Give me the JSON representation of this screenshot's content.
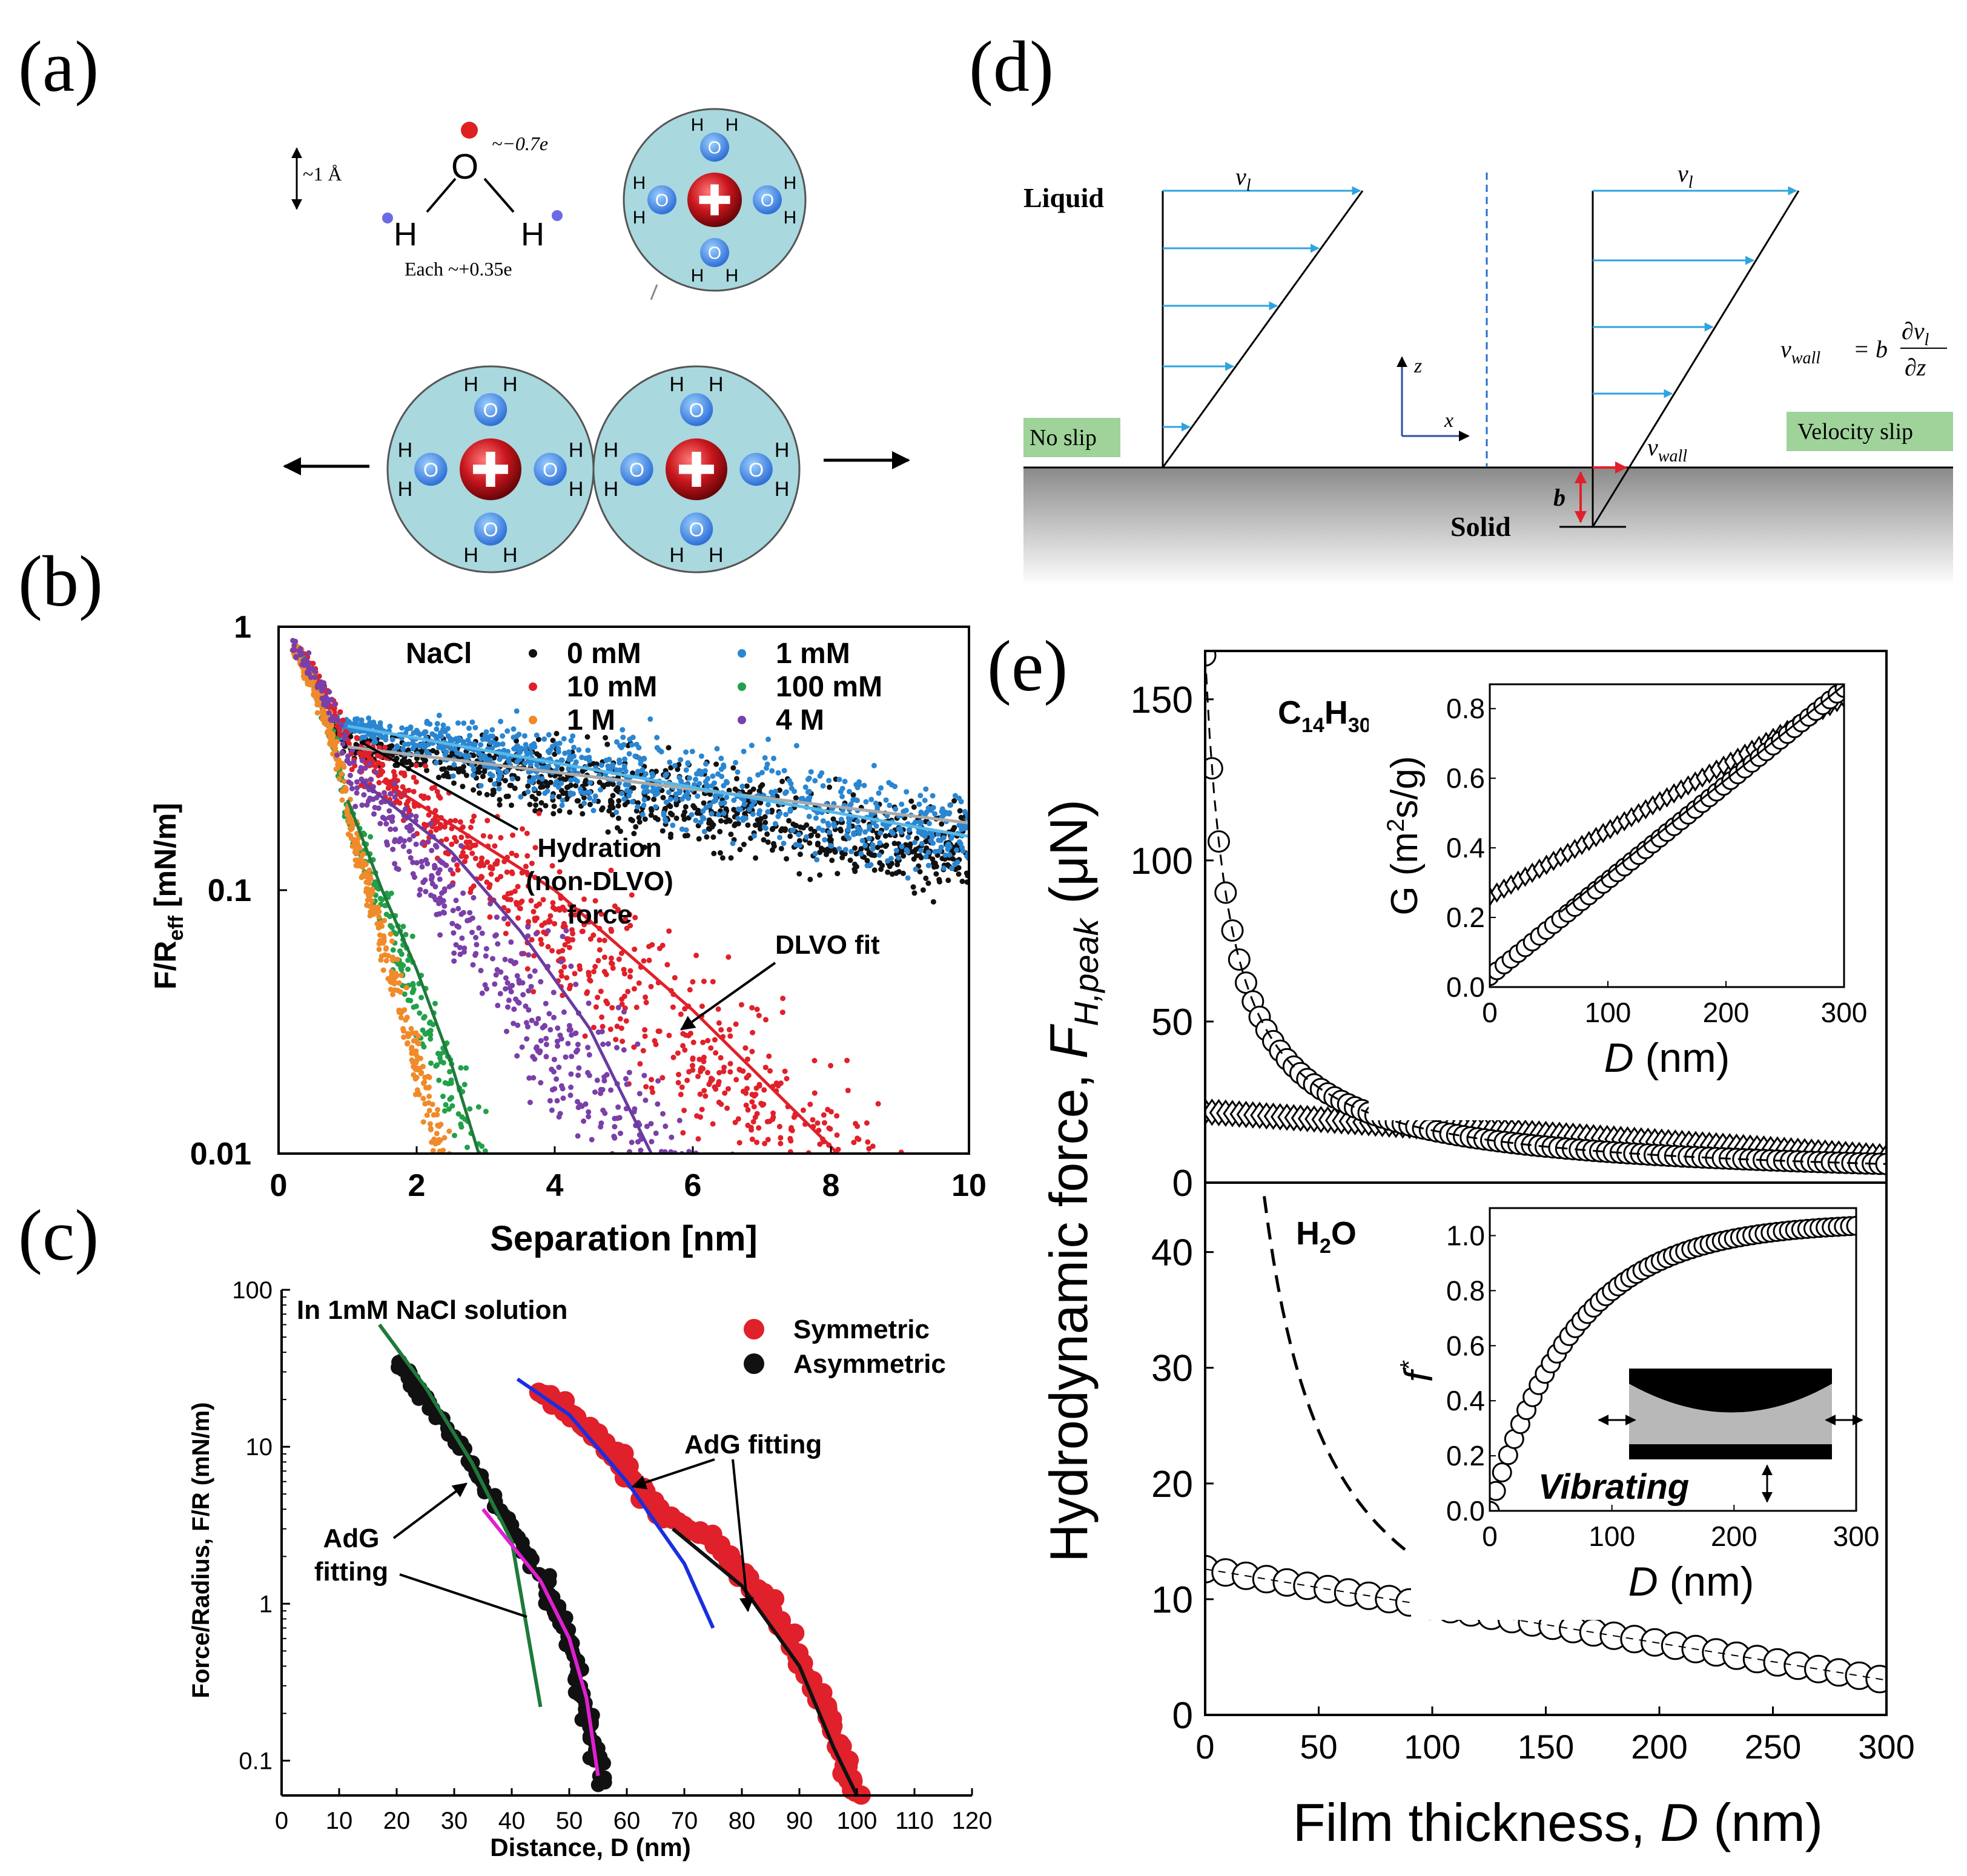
{
  "panels": {
    "a": {
      "letter": "(a)",
      "scale_label": "~1 Å",
      "o_charge": "~−0.7e",
      "h_charge": "Each ~+0.35e",
      "o_label": "O",
      "h_label": "H",
      "ion_h": "H",
      "ion_o": "O"
    },
    "b": {
      "letter": "(b)"
    },
    "c": {
      "letter": "(c)"
    },
    "d": {
      "letter": "(d)",
      "liquid": "Liquid",
      "solid": "Solid",
      "no_slip": "No slip",
      "velocity_slip": "Velocity slip",
      "v_l": "v",
      "v_l_sub": "l",
      "v_wall": "v",
      "v_wall_sub": "wall",
      "equation_lhs": "v",
      "equation_lhs_sub": "wall",
      "equation_eq": "= b",
      "equation_num": "∂v",
      "equation_num_sub": "l",
      "equation_den": "∂z",
      "b_label": "b",
      "z_axis": "z",
      "x_axis": "x"
    },
    "e": {
      "letter": "(e)"
    }
  },
  "colors": {
    "water_cyan": "#a9d8de",
    "ion_red": "#c8161d",
    "oxygen_blue": "#2f8fd6",
    "arrow_blue": "#2fa3e0",
    "label_green": "#9fd39a",
    "s_black": "#111111",
    "s_blue": "#2a86d1",
    "s_red": "#e0202a",
    "s_green": "#22a04a",
    "s_orange": "#f08a2a",
    "s_purple": "#7a3fa8",
    "fit_green": "#1f7a3a",
    "fit_purple": "#6a3aa0",
    "fit_magenta": "#e020d0",
    "fit_blue": "#1a2ee0",
    "fit_lightblue": "#58b8e8"
  },
  "chart_data": [
    {
      "id": "b",
      "type": "scatter",
      "title": "",
      "xlabel": "Separation [nm]",
      "ylabel": "F/R",
      "ylabel_sub": "eff",
      "ylabel_unit": " [mN/m]",
      "xlim": [
        0,
        10
      ],
      "ylim": [
        0.01,
        1
      ],
      "yscale": "log",
      "xticks": [
        0,
        2,
        4,
        6,
        8,
        10
      ],
      "xtick_labels": [
        "0",
        "2",
        "4",
        "6",
        "8",
        "10"
      ],
      "yticks": [
        1,
        0.1,
        0.01
      ],
      "ytick_labels": [
        "1",
        "0.1",
        "0.01"
      ],
      "legend_title": "NaCl",
      "series": [
        {
          "name": "0 mM",
          "color": "#111111",
          "model": {
            "A": 0.36,
            "k": 0.105,
            "x0": 0.9
          },
          "xrange": [
            0.8,
            10
          ],
          "scatter": 0.25
        },
        {
          "name": "1 mM",
          "color": "#2a86d1",
          "model": {
            "A": 0.42,
            "k": 0.105,
            "x0": 0.9
          },
          "xrange": [
            0.8,
            10
          ],
          "scatter": 0.25
        },
        {
          "name": "10 mM",
          "color": "#e0202a",
          "model": {
            "A": 0.35,
            "k": 0.52,
            "x0": 1.0
          },
          "xrange": [
            0.3,
            10
          ],
          "scatter": 0.5
        },
        {
          "name": "100 mM",
          "color": "#22a04a",
          "model": {
            "A": 0.2,
            "k": 1.6,
            "x0": 1.0
          },
          "xrange": [
            0.2,
            4.5
          ],
          "scatter": 0.55
        },
        {
          "name": "1 M",
          "color": "#f08a2a",
          "model": {
            "A": 0.2,
            "k": 2.2,
            "x0": 1.0
          },
          "xrange": [
            0.2,
            2.5
          ],
          "scatter": 0.5
        },
        {
          "name": "4 M",
          "color": "#7a3fa8",
          "model": {
            "A": 0.3,
            "k": 0.8,
            "x0": 1.0
          },
          "xrange": [
            0.2,
            10
          ],
          "scatter": 0.6
        }
      ],
      "fits": [
        {
          "name": "0 mM fit",
          "color": "#aaaaaa",
          "points": [
            [
              1.0,
              0.35
            ],
            [
              10,
              0.18
            ]
          ]
        },
        {
          "name": "1 mM fit",
          "color": "#58b8e8",
          "points": [
            [
              1.0,
              0.42
            ],
            [
              10,
              0.16
            ]
          ]
        },
        {
          "name": "10 mM fit",
          "color": "#e0202a",
          "points": [
            [
              1.5,
              0.26
            ],
            [
              4,
              0.1
            ],
            [
              6,
              0.035
            ],
            [
              8.1,
              0.01
            ]
          ]
        },
        {
          "name": "100 mM fit",
          "color": "#1f7a3a",
          "points": [
            [
              1.0,
              0.22
            ],
            [
              1.5,
              0.1
            ],
            [
              2,
              0.05
            ],
            [
              2.5,
              0.022
            ],
            [
              2.9,
              0.01
            ]
          ]
        },
        {
          "name": "4 M fit",
          "color": "#6a3aa0",
          "points": [
            [
              1.2,
              0.26
            ],
            [
              2.5,
              0.14
            ],
            [
              3.5,
              0.07
            ],
            [
              4.5,
              0.03
            ],
            [
              5.4,
              0.01
            ]
          ]
        }
      ],
      "annotations": [
        {
          "text_lines": [
            "Hydration",
            "(non-DLVO)",
            "force"
          ]
        },
        {
          "text_lines": [
            "DLVO fit"
          ]
        }
      ]
    },
    {
      "id": "c",
      "type": "scatter",
      "title": "In 1mM NaCl solution",
      "xlabel": "Distance, D (nm)",
      "ylabel": "Force/Radius, F/R (mN/m)",
      "xlim": [
        0,
        120
      ],
      "ylim": [
        0.06,
        100
      ],
      "yscale": "log",
      "xticks": [
        0,
        10,
        20,
        30,
        40,
        50,
        60,
        70,
        80,
        90,
        100,
        110,
        120
      ],
      "xtick_labels": [
        "0",
        "10",
        "20",
        "30",
        "40",
        "50",
        "60",
        "70",
        "80",
        "90",
        "100",
        "110",
        "120"
      ],
      "yticks": [
        100,
        10,
        1,
        0.1
      ],
      "ytick_labels": [
        "100",
        "10",
        "1",
        "0.1"
      ],
      "series": [
        {
          "name": "Symmetric",
          "color": "#e0202a",
          "curve": [
            [
              45,
              22
            ],
            [
              55,
              12
            ],
            [
              65,
              4
            ],
            [
              75,
              2.5
            ],
            [
              85,
              1
            ],
            [
              95,
              0.2
            ],
            [
              100,
              0.06
            ]
          ]
        },
        {
          "name": "Asymmetric",
          "color": "#111111",
          "curve": [
            [
              20,
              35
            ],
            [
              25,
              20
            ],
            [
              35,
              6
            ],
            [
              45,
              1.5
            ],
            [
              50,
              0.6
            ],
            [
              53,
              0.2
            ],
            [
              56,
              0.07
            ]
          ]
        }
      ],
      "fits": [
        {
          "name": "green",
          "color": "#1f7a3a",
          "points": [
            [
              17,
              60
            ],
            [
              25,
              24
            ],
            [
              33,
              8
            ],
            [
              40,
              2.5
            ],
            [
              45,
              0.22
            ]
          ]
        },
        {
          "name": "magenta",
          "color": "#e020d0",
          "points": [
            [
              35,
              4
            ],
            [
              45,
              1.4
            ],
            [
              50,
              0.6
            ],
            [
              53,
              0.25
            ],
            [
              55,
              0.08
            ]
          ]
        },
        {
          "name": "blue",
          "color": "#1a2ee0",
          "points": [
            [
              41,
              27
            ],
            [
              50,
              16
            ],
            [
              60,
              6
            ],
            [
              70,
              1.8
            ],
            [
              75,
              0.7
            ]
          ]
        },
        {
          "name": "black",
          "color": "#111111",
          "points": [
            [
              68,
              3
            ],
            [
              80,
              1.3
            ],
            [
              90,
              0.4
            ],
            [
              96,
              0.12
            ],
            [
              100,
              0.06
            ]
          ]
        }
      ],
      "annotations": [
        {
          "text_lines": [
            "AdG fitting"
          ]
        },
        {
          "text_lines": [
            "AdG",
            "fitting"
          ]
        }
      ]
    },
    {
      "id": "e_top",
      "type": "scatter",
      "ylabel": "Hydrodynamic force, F",
      "ylabel_sub": "H,peak",
      "ylabel_unit": " (μN)",
      "xlim": [
        0,
        300
      ],
      "ylim": [
        0,
        165
      ],
      "yticks": [
        0,
        50,
        100,
        150
      ],
      "ytick_labels": [
        "0",
        "50",
        "100",
        "150"
      ],
      "label": "C",
      "label_sub1": "14",
      "label_mid": "H",
      "label_sub2": "30",
      "series": [
        {
          "name": "circles",
          "marker": "circle",
          "model": "1800/(x+11)",
          "xrange": [
            0,
            300
          ]
        },
        {
          "name": "diamonds",
          "marker": "diamond",
          "model": "22-0.047x",
          "xrange": [
            0,
            300
          ]
        }
      ]
    },
    {
      "id": "e_top_inset",
      "type": "scatter",
      "xlabel": "D (nm)",
      "ylabel": "G (m",
      "ylabel_sup": "2",
      "ylabel_unit": "s/g)",
      "xlim": [
        0,
        300
      ],
      "ylim": [
        0,
        0.87
      ],
      "xticks": [
        0,
        100,
        200,
        300
      ],
      "xtick_labels": [
        "0",
        "100",
        "200",
        "300"
      ],
      "yticks": [
        0,
        0.2,
        0.4,
        0.6,
        0.8
      ],
      "ytick_labels": [
        "0.0",
        "0.2",
        "0.4",
        "0.6",
        "0.8"
      ],
      "series": [
        {
          "name": "circles",
          "marker": "circle",
          "model": "0.03+0.00276x"
        },
        {
          "name": "diamonds",
          "marker": "diamond",
          "model": "0.26+0.0019x"
        }
      ]
    },
    {
      "id": "e_bottom",
      "type": "scatter",
      "xlabel": "Film thickness, D (nm)",
      "xlim": [
        0,
        300
      ],
      "ylim": [
        0,
        46
      ],
      "xticks": [
        0,
        50,
        100,
        150,
        200,
        250,
        300
      ],
      "xtick_labels": [
        "0",
        "50",
        "100",
        "150",
        "200",
        "250",
        "300"
      ],
      "yticks": [
        0,
        10,
        20,
        30,
        40
      ],
      "ytick_labels": [
        "0",
        "10",
        "20",
        "30",
        "40"
      ],
      "label": "H",
      "label_sub": "2",
      "label_end": "O",
      "series": [
        {
          "name": "circles",
          "marker": "circle",
          "model": "12.6-0.032x",
          "xrange": [
            0,
            300
          ]
        }
      ],
      "fits": [
        {
          "name": "dashed",
          "dash": true,
          "model": "1300/(x+3)",
          "xrange": [
            26,
            138
          ]
        }
      ]
    },
    {
      "id": "e_bottom_inset",
      "type": "scatter",
      "xlabel": "D (nm)",
      "ylabel": "f",
      "ylabel_sup": "*",
      "xlim": [
        0,
        300
      ],
      "ylim": [
        0,
        1.1
      ],
      "xticks": [
        0,
        100,
        200,
        300
      ],
      "xtick_labels": [
        "0",
        "100",
        "200",
        "300"
      ],
      "yticks": [
        0,
        0.2,
        0.4,
        0.6,
        0.8,
        1.0
      ],
      "ytick_labels": [
        "0.0",
        "0.2",
        "0.4",
        "0.6",
        "0.8",
        "1.0"
      ],
      "schematic_label": "Vibrating",
      "series": [
        {
          "name": "circles",
          "marker": "circle",
          "model": "1.05*(1-exp(-x/70))"
        }
      ]
    }
  ]
}
